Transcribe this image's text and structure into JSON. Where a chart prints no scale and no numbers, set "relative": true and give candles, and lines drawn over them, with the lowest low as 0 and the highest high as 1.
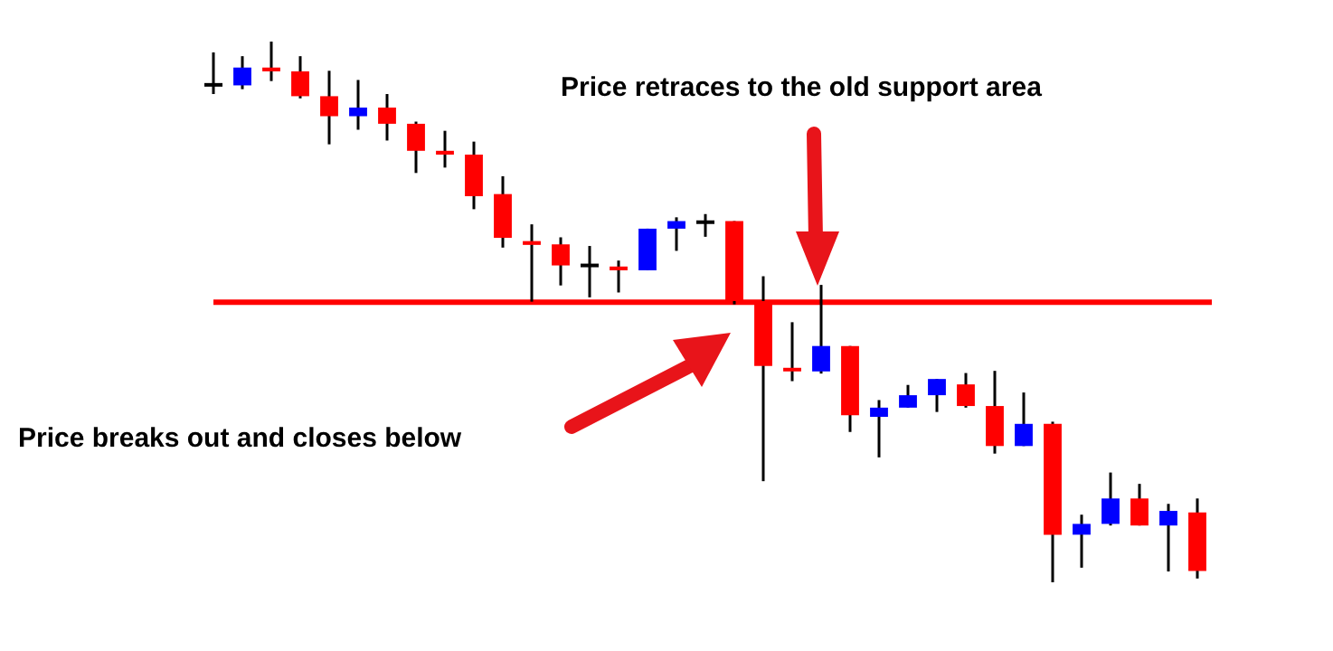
{
  "chart_data": {
    "type": "candlestick",
    "relative": true,
    "tick_labels": false,
    "categories": [
      null,
      null,
      null,
      null,
      null,
      null,
      null,
      null,
      null,
      null,
      null,
      null,
      null,
      null,
      null,
      null,
      null,
      null,
      null,
      null,
      null,
      null,
      null,
      null,
      null,
      null,
      null,
      null,
      null,
      null,
      null,
      null,
      null,
      null,
      null
    ],
    "ohlc": [
      [
        0.92,
        0.98,
        0.903,
        0.92
      ],
      [
        0.919,
        0.973,
        0.912,
        0.952
      ],
      [
        0.952,
        1.0,
        0.927,
        0.945
      ],
      [
        0.945,
        0.973,
        0.895,
        0.899
      ],
      [
        0.899,
        0.946,
        0.81,
        0.862
      ],
      [
        0.862,
        0.929,
        0.837,
        0.878
      ],
      [
        0.878,
        0.903,
        0.817,
        0.848
      ],
      [
        0.848,
        0.852,
        0.757,
        0.798
      ],
      [
        0.798,
        0.835,
        0.767,
        0.791
      ],
      [
        0.791,
        0.815,
        0.69,
        0.714
      ],
      [
        0.718,
        0.751,
        0.619,
        0.637
      ],
      [
        0.631,
        0.662,
        0.519,
        0.624
      ],
      [
        0.625,
        0.638,
        0.549,
        0.586
      ],
      [
        0.586,
        0.622,
        0.527,
        0.586
      ],
      [
        0.584,
        0.595,
        0.536,
        0.577
      ],
      [
        0.577,
        0.654,
        0.577,
        0.654
      ],
      [
        0.654,
        0.675,
        0.613,
        0.668
      ],
      [
        0.666,
        0.681,
        0.639,
        0.666
      ],
      [
        0.668,
        0.668,
        0.514,
        0.52
      ],
      [
        0.52,
        0.566,
        0.187,
        0.4
      ],
      [
        0.396,
        0.481,
        0.372,
        0.39
      ],
      [
        0.39,
        0.55,
        0.386,
        0.437
      ],
      [
        0.437,
        0.437,
        0.278,
        0.309
      ],
      [
        0.306,
        0.337,
        0.231,
        0.323
      ],
      [
        0.323,
        0.365,
        0.323,
        0.346
      ],
      [
        0.346,
        0.376,
        0.315,
        0.376
      ],
      [
        0.366,
        0.387,
        0.323,
        0.326
      ],
      [
        0.326,
        0.391,
        0.238,
        0.252
      ],
      [
        0.252,
        0.351,
        0.252,
        0.293
      ],
      [
        0.293,
        0.297,
        0,
        0.088
      ],
      [
        0.088,
        0.125,
        0.027,
        0.108
      ],
      [
        0.108,
        0.203,
        0.105,
        0.155
      ],
      [
        0.155,
        0.182,
        0.105,
        0.105
      ],
      [
        0.105,
        0.145,
        0.02,
        0.132
      ],
      [
        0.129,
        0.155,
        0.007,
        0.021
      ]
    ],
    "colors": [
      "#000000",
      "#0000ff",
      "#ff0000",
      "#ff0000",
      "#ff0000",
      "#0000ff",
      "#ff0000",
      "#ff0000",
      "#ff0000",
      "#ff0000",
      "#ff0000",
      "#ff0000",
      "#ff0000",
      "#000000",
      "#ff0000",
      "#0000ff",
      "#0000ff",
      "#000000",
      "#ff0000",
      "#ff0000",
      "#ff0000",
      "#0000ff",
      "#ff0000",
      "#0000ff",
      "#0000ff",
      "#0000ff",
      "#ff0000",
      "#ff0000",
      "#0000ff",
      "#ff0000",
      "#0000ff",
      "#0000ff",
      "#ff0000",
      "#0000ff",
      "#ff0000"
    ],
    "ref_lines": [
      {
        "axis": "y",
        "value": 0.518,
        "color": "#ff0000"
      }
    ],
    "annotations": [
      "Price retraces to the old support area",
      "Price breaks out and closes below"
    ]
  }
}
